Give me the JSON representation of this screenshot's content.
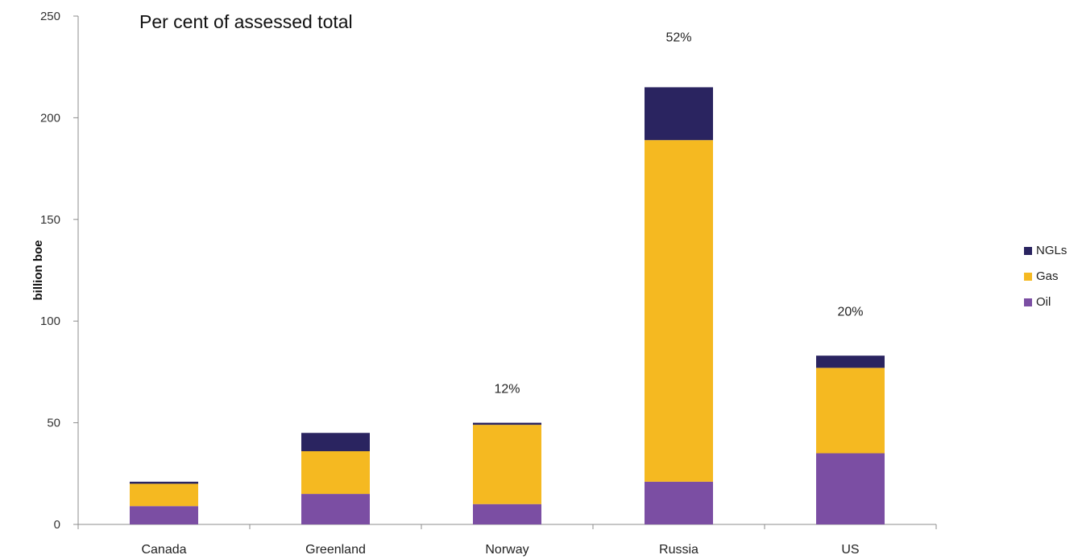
{
  "chart_data": {
    "type": "bar",
    "stacked": true,
    "title": "Per cent of assessed total",
    "xlabel": "",
    "ylabel": "billion boe",
    "ylim": [
      0,
      250
    ],
    "yticks": [
      0,
      50,
      100,
      150,
      200,
      250
    ],
    "grid": false,
    "legend_position": "right",
    "categories": [
      "Canada",
      "Greenland",
      "Norway",
      "Russia",
      "US"
    ],
    "series": [
      {
        "name": "Oil",
        "color": "#7b4ea3",
        "values": [
          9,
          15,
          10,
          21,
          35
        ]
      },
      {
        "name": "Gas",
        "color": "#f5b921",
        "values": [
          11,
          21,
          39,
          168,
          42
        ]
      },
      {
        "name": "NGLs",
        "color": "#2a2460",
        "values": [
          1,
          9,
          1,
          26,
          6
        ]
      }
    ],
    "annotations": [
      {
        "category": "Norway",
        "text": "12%",
        "y_value": 67
      },
      {
        "category": "Russia",
        "text": "52%",
        "y_value": 240
      },
      {
        "category": "US",
        "text": "20%",
        "y_value": 105
      }
    ],
    "legend_order": [
      "NGLs",
      "Gas",
      "Oil"
    ]
  }
}
